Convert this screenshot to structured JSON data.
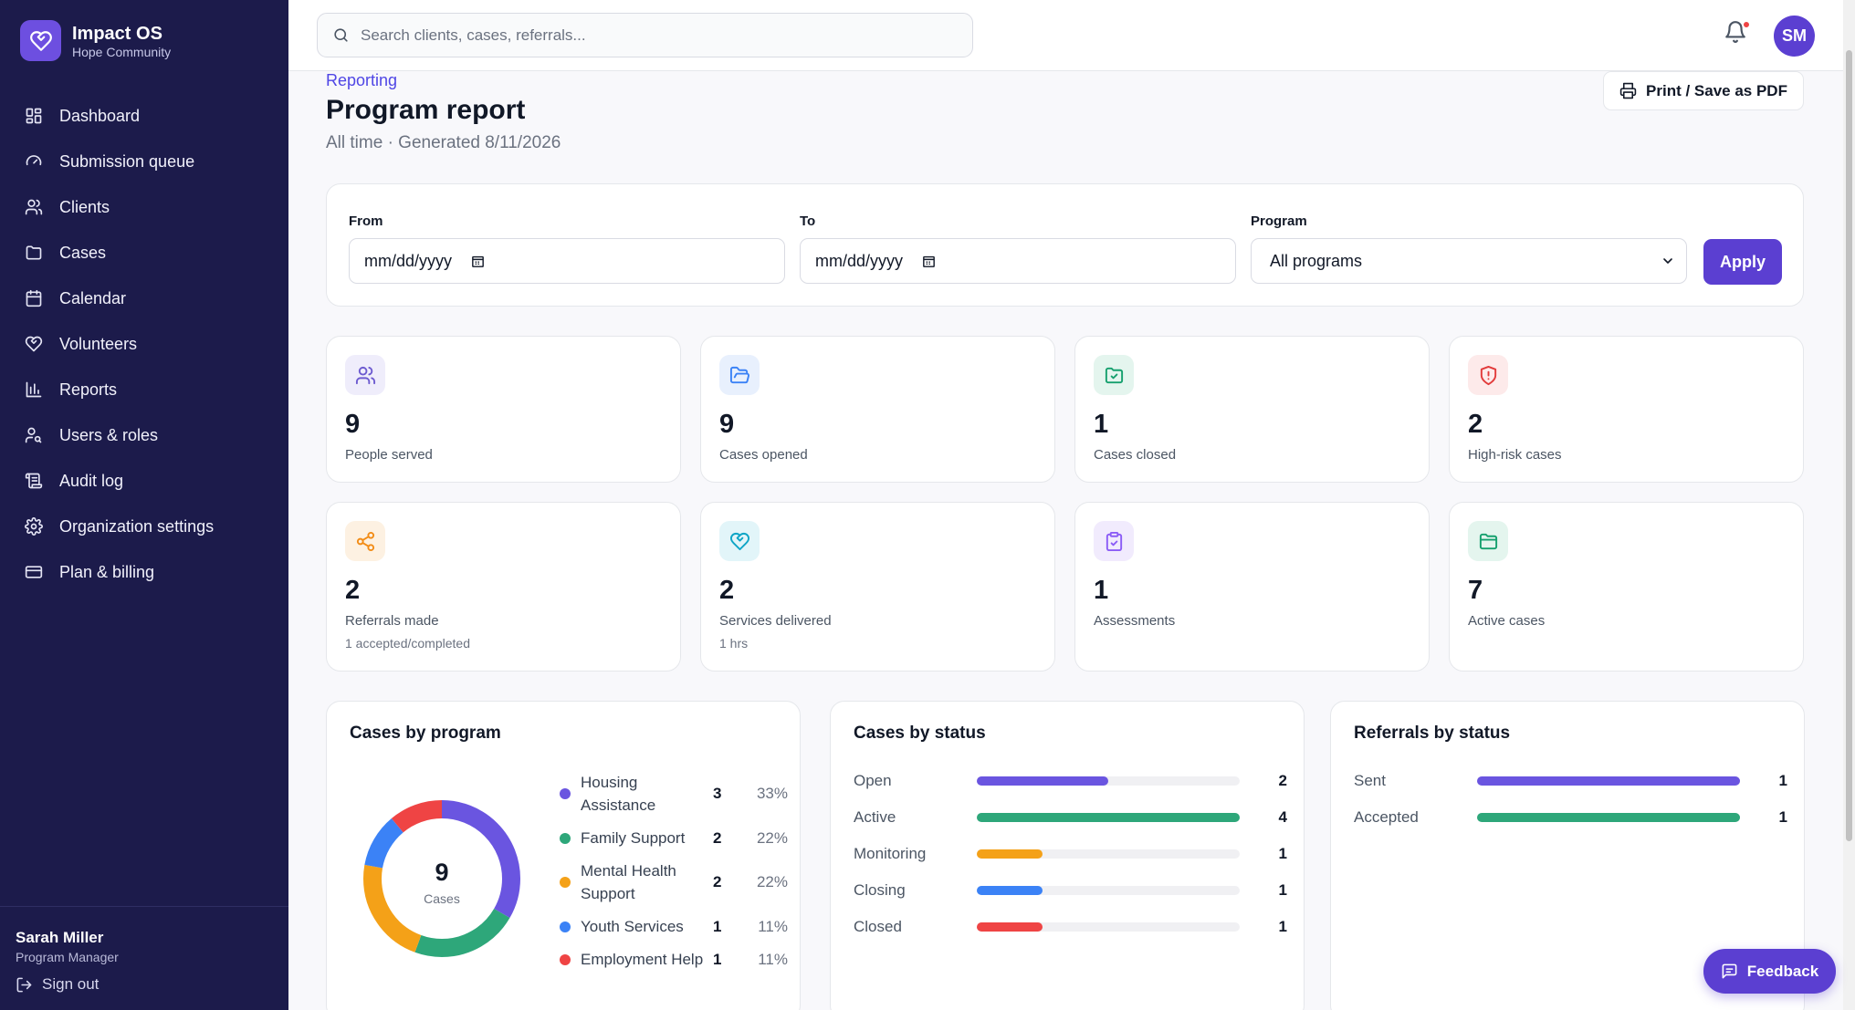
{
  "brand": {
    "name": "Impact OS",
    "org": "Hope Community"
  },
  "sidebar": {
    "items": [
      {
        "label": "Dashboard",
        "icon": "grid-icon"
      },
      {
        "label": "Submission queue",
        "icon": "gauge-icon"
      },
      {
        "label": "Clients",
        "icon": "users-icon"
      },
      {
        "label": "Cases",
        "icon": "folder-icon"
      },
      {
        "label": "Calendar",
        "icon": "calendar-icon"
      },
      {
        "label": "Volunteers",
        "icon": "heart-handshake-icon"
      },
      {
        "label": "Reports",
        "icon": "bar-chart-icon"
      },
      {
        "label": "Users & roles",
        "icon": "user-key-icon"
      },
      {
        "label": "Audit log",
        "icon": "scroll-icon"
      },
      {
        "label": "Organization settings",
        "icon": "gear-icon"
      },
      {
        "label": "Plan & billing",
        "icon": "credit-card-icon"
      }
    ],
    "user": {
      "name": "Sarah Miller",
      "role": "Program Manager"
    },
    "signout_label": "Sign out"
  },
  "topbar": {
    "search_placeholder": "Search clients, cases, referrals...",
    "avatar_initials": "SM"
  },
  "header": {
    "breadcrumb": "Reporting",
    "title": "Program report",
    "subtitle": "All time · Generated 8/11/2026",
    "print_label": "Print / Save as PDF"
  },
  "filters": {
    "from_label": "From",
    "from_placeholder": "mm/dd/yyyy",
    "to_label": "To",
    "to_placeholder": "mm/dd/yyyy",
    "program_label": "Program",
    "program_value": "All programs",
    "apply_label": "Apply"
  },
  "stats": [
    {
      "value": "9",
      "label": "People served",
      "sub": "",
      "icon": "users-icon",
      "color": "#6d5bd0",
      "bg": "#efedfb"
    },
    {
      "value": "9",
      "label": "Cases opened",
      "sub": "",
      "icon": "folder-open-icon",
      "color": "#3b82f6",
      "bg": "#e8f0fd"
    },
    {
      "value": "1",
      "label": "Cases closed",
      "sub": "",
      "icon": "folder-check-icon",
      "color": "#16a06e",
      "bg": "#e4f5ee"
    },
    {
      "value": "2",
      "label": "High-risk cases",
      "sub": "",
      "icon": "shield-alert-icon",
      "color": "#e23b3b",
      "bg": "#fdeaea"
    },
    {
      "value": "2",
      "label": "Referrals made",
      "sub": "1 accepted/completed",
      "icon": "share-icon",
      "color": "#f28c16",
      "bg": "#fdf1e2"
    },
    {
      "value": "2",
      "label": "Services delivered",
      "sub": "1 hrs",
      "icon": "heart-handshake-icon",
      "color": "#0ea5c6",
      "bg": "#e2f5f9"
    },
    {
      "value": "1",
      "label": "Assessments",
      "sub": "",
      "icon": "clipboard-check-icon",
      "color": "#8b5cf6",
      "bg": "#f1ebfd"
    },
    {
      "value": "7",
      "label": "Active cases",
      "sub": "",
      "icon": "folder-icon",
      "color": "#16a06e",
      "bg": "#e4f5ee"
    }
  ],
  "cases_by_program": {
    "title": "Cases by program",
    "total": "9",
    "total_label": "Cases"
  },
  "cases_by_status": {
    "title": "Cases by status",
    "max": 4
  },
  "referrals_by_status": {
    "title": "Referrals by status",
    "max": 1
  },
  "chart_data": [
    {
      "type": "pie",
      "title": "Cases by program",
      "categories": [
        "Housing Assistance",
        "Family Support",
        "Mental Health Support",
        "Youth Services",
        "Employment Help"
      ],
      "values": [
        3,
        2,
        2,
        1,
        1
      ],
      "percents": [
        "33%",
        "22%",
        "22%",
        "11%",
        "11%"
      ],
      "colors": [
        "#6a55e0",
        "#2ea77a",
        "#f4a118",
        "#3b82f6",
        "#ef4444"
      ]
    },
    {
      "type": "bar",
      "title": "Cases by status",
      "categories": [
        "Open",
        "Active",
        "Monitoring",
        "Closing",
        "Closed"
      ],
      "values": [
        2,
        4,
        1,
        1,
        1
      ],
      "colors": [
        "#6a55e0",
        "#2ea77a",
        "#f4a118",
        "#3b82f6",
        "#ef4444"
      ]
    },
    {
      "type": "bar",
      "title": "Referrals by status",
      "categories": [
        "Sent",
        "Accepted"
      ],
      "values": [
        1,
        1
      ],
      "colors": [
        "#6a55e0",
        "#2ea77a"
      ]
    }
  ],
  "feedback_label": "Feedback"
}
